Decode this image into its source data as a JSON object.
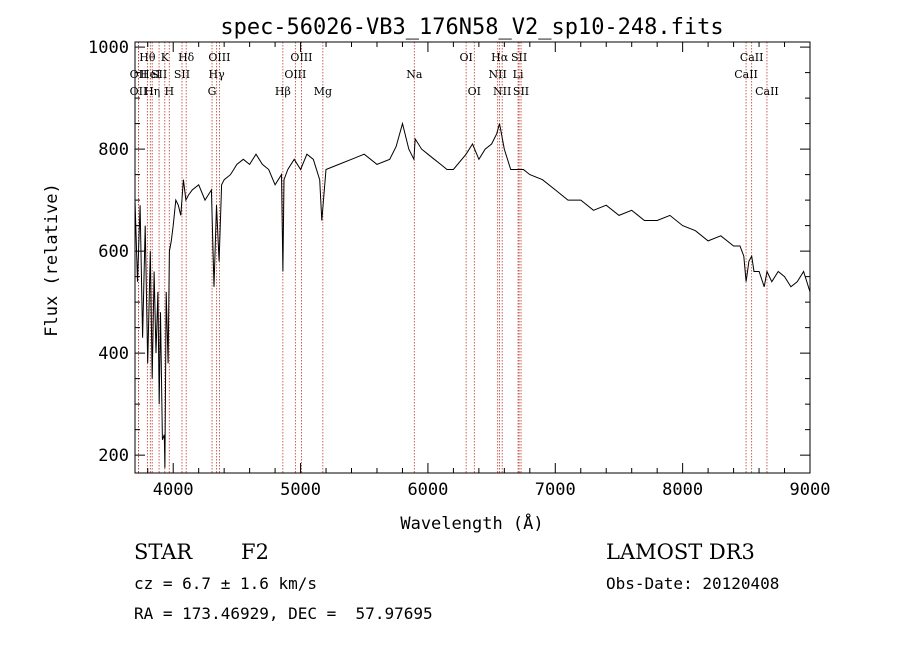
{
  "chart_data": {
    "type": "line",
    "title": "spec-56026-VB3_176N58_V2_sp10-248.fits",
    "xlabel": "Wavelength (Å)",
    "ylabel": "Flux (relative)",
    "xlim": [
      3700,
      9000
    ],
    "ylim": [
      165,
      1010
    ],
    "xticks": [
      4000,
      5000,
      6000,
      7000,
      8000,
      9000
    ],
    "yticks": [
      200,
      400,
      600,
      800,
      1000
    ],
    "grid": false,
    "series": [
      {
        "color": "#000000",
        "x": [
          3700,
          3720,
          3740,
          3760,
          3780,
          3800,
          3820,
          3835,
          3850,
          3865,
          3880,
          3890,
          3900,
          3915,
          3930,
          3935,
          3945,
          3960,
          3970,
          3985,
          4000,
          4020,
          4040,
          4060,
          4080,
          4100,
          4120,
          4150,
          4200,
          4250,
          4300,
          4320,
          4340,
          4360,
          4380,
          4400,
          4450,
          4500,
          4550,
          4600,
          4650,
          4700,
          4750,
          4800,
          4850,
          4861,
          4870,
          4900,
          4950,
          5000,
          5050,
          5100,
          5150,
          5167,
          5200,
          5300,
          5400,
          5500,
          5600,
          5700,
          5750,
          5800,
          5850,
          5890,
          5900,
          5950,
          6000,
          6050,
          6100,
          6150,
          6200,
          6300,
          6350,
          6400,
          6450,
          6500,
          6540,
          6562,
          6570,
          6600,
          6650,
          6700,
          6750,
          6800,
          6900,
          7000,
          7100,
          7200,
          7300,
          7400,
          7500,
          7600,
          7700,
          7800,
          7900,
          8000,
          8100,
          8200,
          8300,
          8400,
          8450,
          8480,
          8498,
          8520,
          8542,
          8560,
          8600,
          8640,
          8662,
          8700,
          8750,
          8800,
          8850,
          8900,
          8950,
          9000
        ],
        "y": [
          700,
          540,
          690,
          430,
          650,
          380,
          600,
          350,
          560,
          400,
          520,
          300,
          480,
          230,
          240,
          175,
          520,
          380,
          600,
          620,
          650,
          700,
          690,
          670,
          740,
          700,
          710,
          720,
          730,
          700,
          720,
          530,
          690,
          580,
          730,
          740,
          750,
          770,
          780,
          770,
          790,
          770,
          760,
          730,
          750,
          560,
          740,
          760,
          780,
          760,
          790,
          780,
          740,
          660,
          760,
          770,
          780,
          790,
          770,
          780,
          805,
          850,
          800,
          780,
          820,
          800,
          790,
          780,
          770,
          760,
          760,
          790,
          810,
          780,
          800,
          810,
          830,
          850,
          840,
          800,
          760,
          760,
          760,
          750,
          740,
          720,
          700,
          700,
          680,
          690,
          670,
          680,
          660,
          660,
          670,
          650,
          640,
          620,
          630,
          610,
          610,
          590,
          540,
          580,
          590,
          560,
          560,
          530,
          560,
          540,
          560,
          550,
          530,
          540,
          560,
          520
        ]
      }
    ],
    "annotations": [
      {
        "x": 3797,
        "label": "Hθ",
        "row": 1
      },
      {
        "x": 3727,
        "label": "OII",
        "row": 2
      },
      {
        "x": 3820,
        "label": "HeI",
        "row": 2
      },
      {
        "x": 3727,
        "label": "OII",
        "row": 3
      },
      {
        "x": 3835,
        "label": "Hη",
        "row": 3
      },
      {
        "x": 3889,
        "label": "SII",
        "row": 2
      },
      {
        "x": 3934,
        "label": "K",
        "row": 1
      },
      {
        "x": 3969,
        "label": "H",
        "row": 3
      },
      {
        "x": 4102,
        "label": "Hδ",
        "row": 1
      },
      {
        "x": 4069,
        "label": "SII",
        "row": 2
      },
      {
        "x": 4363,
        "label": "OIII",
        "row": 1
      },
      {
        "x": 4341,
        "label": "Hγ",
        "row": 2
      },
      {
        "x": 4305,
        "label": "G",
        "row": 3
      },
      {
        "x": 4861,
        "label": "Hβ",
        "row": 3
      },
      {
        "x": 5007,
        "label": "OIII",
        "row": 1
      },
      {
        "x": 4959,
        "label": "OIII",
        "row": 2
      },
      {
        "x": 5175,
        "label": "Mg",
        "row": 3
      },
      {
        "x": 5893,
        "label": "Na",
        "row": 2
      },
      {
        "x": 6300,
        "label": "OI",
        "row": 1
      },
      {
        "x": 6364,
        "label": "OI",
        "row": 3
      },
      {
        "x": 6563,
        "label": "Hα",
        "row": 1
      },
      {
        "x": 6548,
        "label": "NII",
        "row": 2
      },
      {
        "x": 6583,
        "label": "NII",
        "row": 3
      },
      {
        "x": 6716,
        "label": "SII",
        "row": 1
      },
      {
        "x": 6708,
        "label": "Li",
        "row": 2
      },
      {
        "x": 6731,
        "label": "SII",
        "row": 3
      },
      {
        "x": 8498,
        "label": "CaII",
        "row": 2
      },
      {
        "x": 8542,
        "label": "CaII",
        "row": 1
      },
      {
        "x": 8662,
        "label": "CaII",
        "row": 3
      }
    ]
  },
  "info": {
    "class": "STAR",
    "subclass": "F2",
    "survey": "LAMOST DR3",
    "cz": "cz = 6.7 ± 1.6 km/s",
    "obsdate": "Obs-Date: 20120408",
    "radec": "RA = 173.46929, DEC =  57.97695"
  }
}
